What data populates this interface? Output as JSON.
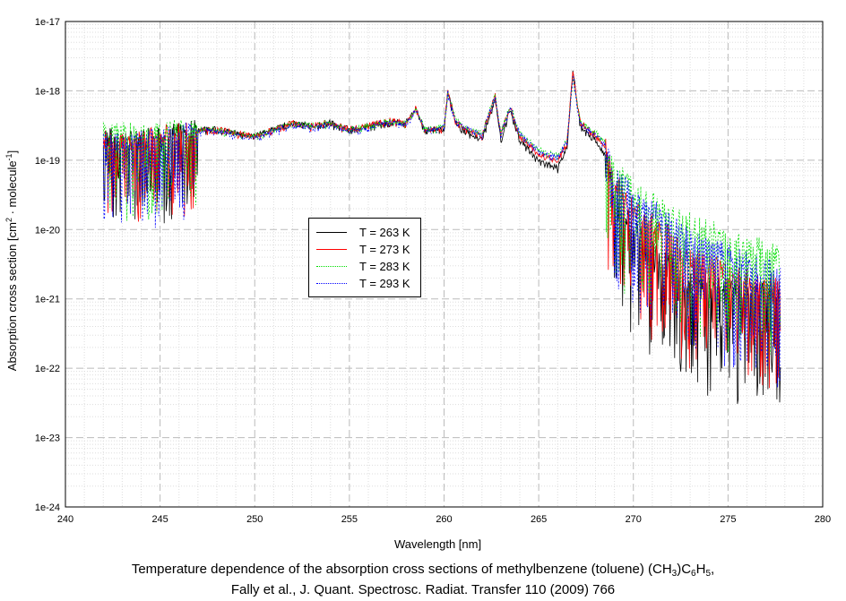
{
  "chart_data": {
    "type": "line",
    "title": "",
    "xlabel": "Wavelength [nm]",
    "ylabel_parts": {
      "a": "Absorption cross section [cm",
      "sup1": "2",
      "b": " · molecule",
      "sup2": "-1",
      "c": "]"
    },
    "xlim": [
      240,
      280
    ],
    "ylim_log10": [
      -24,
      -17
    ],
    "xticks": [
      "240",
      "245",
      "250",
      "255",
      "260",
      "265",
      "270",
      "275",
      "280"
    ],
    "yticks": [
      "1e-24",
      "1e-23",
      "1e-22",
      "1e-21",
      "1e-20",
      "1e-19",
      "1e-18",
      "1e-17"
    ],
    "grid": true,
    "legend_placement": "center-left",
    "x": [
      242,
      243,
      244,
      245,
      246,
      247,
      248,
      249,
      250,
      251,
      252,
      253,
      254,
      255,
      256,
      257,
      258,
      258.5,
      259,
      260,
      260.2,
      260.6,
      261,
      262,
      262.7,
      263,
      263.5,
      264,
      265,
      266,
      266.5,
      266.8,
      267.2,
      268,
      268.5,
      269,
      270,
      271,
      272,
      273,
      274,
      275,
      276,
      277,
      277.8
    ],
    "series": [
      {
        "name": "T = 263 K",
        "color": "#000000",
        "dash": "",
        "values": [
          -18.65,
          -18.7,
          -18.7,
          -18.65,
          -18.6,
          -18.55,
          -18.55,
          -18.6,
          -18.65,
          -18.55,
          -18.45,
          -18.5,
          -18.45,
          -18.55,
          -18.5,
          -18.45,
          -18.45,
          -18.25,
          -18.55,
          -18.55,
          -18.0,
          -18.45,
          -18.55,
          -18.7,
          -18.1,
          -18.7,
          -18.25,
          -18.7,
          -19.0,
          -19.1,
          -18.8,
          -17.7,
          -18.5,
          -18.7,
          -18.9,
          -19.5,
          -20.0,
          -20.3,
          -20.5,
          -20.7,
          -20.8,
          -20.8,
          -20.9,
          -20.9,
          -20.9
        ]
      },
      {
        "name": "T = 273 K",
        "color": "#ff0000",
        "dash": "",
        "values": [
          -18.7,
          -18.75,
          -18.7,
          -18.65,
          -18.6,
          -18.55,
          -18.55,
          -18.6,
          -18.65,
          -18.55,
          -18.45,
          -18.5,
          -18.45,
          -18.55,
          -18.5,
          -18.42,
          -18.45,
          -18.25,
          -18.55,
          -18.52,
          -18.0,
          -18.42,
          -18.52,
          -18.63,
          -18.07,
          -18.63,
          -18.22,
          -18.63,
          -18.9,
          -19.0,
          -18.72,
          -17.72,
          -18.45,
          -18.63,
          -18.8,
          -19.3,
          -19.7,
          -19.9,
          -20.1,
          -20.4,
          -20.5,
          -20.6,
          -20.7,
          -20.8,
          -20.8
        ]
      },
      {
        "name": "T = 283 K",
        "color": "#00dd00",
        "dash": "2,2",
        "values": [
          -18.55,
          -18.6,
          -18.6,
          -18.6,
          -18.55,
          -18.55,
          -18.55,
          -18.6,
          -18.65,
          -18.55,
          -18.45,
          -18.5,
          -18.45,
          -18.55,
          -18.5,
          -18.42,
          -18.45,
          -18.25,
          -18.55,
          -18.5,
          -18.0,
          -18.4,
          -18.5,
          -18.6,
          -18.05,
          -18.6,
          -18.2,
          -18.6,
          -18.85,
          -18.92,
          -18.7,
          -17.75,
          -18.45,
          -18.6,
          -18.72,
          -19.1,
          -19.4,
          -19.6,
          -19.75,
          -19.9,
          -20.0,
          -20.1,
          -20.2,
          -20.3,
          -20.4
        ]
      },
      {
        "name": "T = 293 K",
        "color": "#0000ff",
        "dash": "2,2",
        "values": [
          -18.72,
          -18.77,
          -18.72,
          -18.67,
          -18.62,
          -18.57,
          -18.57,
          -18.62,
          -18.67,
          -18.57,
          -18.47,
          -18.52,
          -18.47,
          -18.57,
          -18.52,
          -18.44,
          -18.47,
          -18.27,
          -18.57,
          -18.52,
          -18.02,
          -18.42,
          -18.52,
          -18.62,
          -18.07,
          -18.62,
          -18.22,
          -18.62,
          -18.87,
          -18.95,
          -18.72,
          -17.77,
          -18.47,
          -18.62,
          -18.77,
          -19.2,
          -19.5,
          -19.7,
          -19.9,
          -20.15,
          -20.25,
          -20.35,
          -20.45,
          -20.55,
          -20.6
        ]
      }
    ],
    "caption_parts": {
      "a": "Temperature dependence of the absorption cross sections of methylbenzene (toluene) (CH",
      "s1": "3",
      "b": ")C",
      "s2": "6",
      "c": "H",
      "s3": "5",
      "d": ",",
      "line2": "Fally et al., J. Quant. Spectrosc. Radiat. Transfer 110 (2009) 766"
    }
  }
}
